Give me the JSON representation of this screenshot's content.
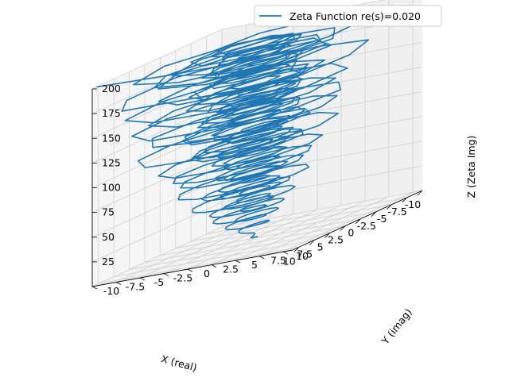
{
  "chart_data": {
    "type": "line",
    "projection": "3d",
    "series": [
      {
        "name": "Zeta Function re(s)=0.020",
        "color": "#1f77b4",
        "param_range": [
          0.1,
          200
        ],
        "description_of_shape": "critical-strip zeta spiral with z = imaginary part of s"
      }
    ],
    "xlabel": "X (real)",
    "ylabel": "Y (imag)",
    "zlabel": "Z (Zeta Img)",
    "xlim": [
      -10,
      11
    ],
    "ylim": [
      -10,
      11
    ],
    "zlim": [
      0,
      200
    ],
    "xticks": [
      "-10",
      "-7.5",
      "-5",
      "-2.5",
      "0",
      "2.5",
      "5",
      "7.5",
      "10"
    ],
    "yticks": [
      "-10",
      "-7.5",
      "-5",
      "-2.5",
      "0",
      "2.5",
      "5",
      "7.5",
      "10"
    ],
    "zticks": [
      "25",
      "50",
      "75",
      "100",
      "125",
      "150",
      "175",
      "200"
    ],
    "legend_placement": "top-right",
    "grid": true,
    "pane_color": "#f2f2f2"
  }
}
